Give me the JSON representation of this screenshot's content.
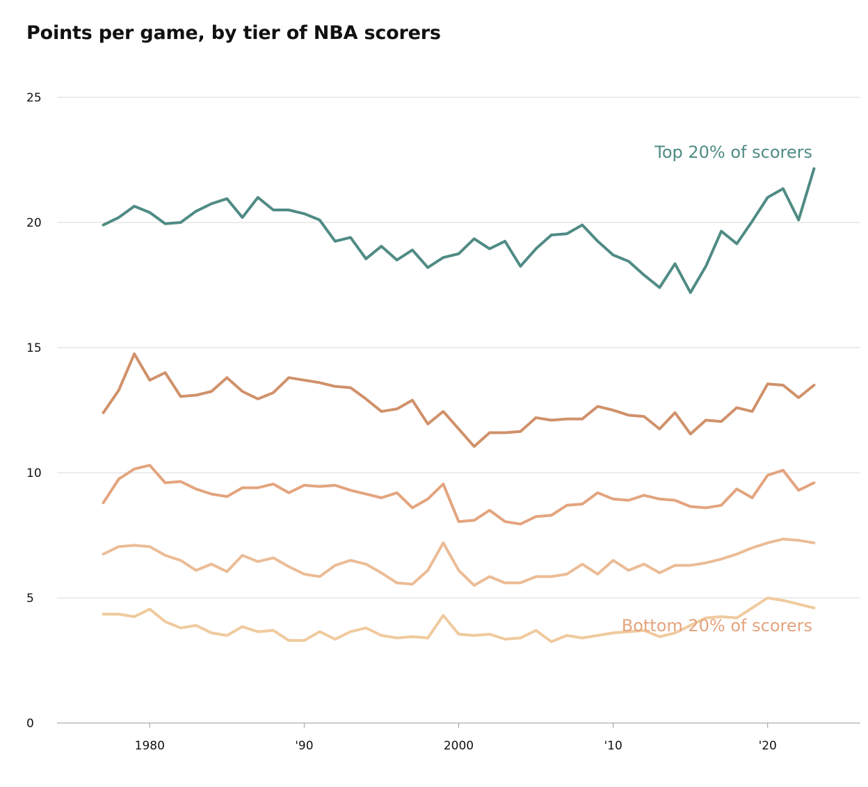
{
  "chart_data": {
    "type": "line",
    "title": "Points per game, by tier of NBA scorers",
    "xlabel": "",
    "ylabel": "",
    "xlim": [
      1974,
      2026
    ],
    "ylim": [
      0,
      25
    ],
    "y_ticks": [
      0,
      5,
      10,
      15,
      20,
      25
    ],
    "x_ticks": [
      {
        "value": 1980,
        "label": "1980"
      },
      {
        "value": 1990,
        "label": "'90"
      },
      {
        "value": 2000,
        "label": "2000"
      },
      {
        "value": 2010,
        "label": "'10"
      },
      {
        "value": 2020,
        "label": "'20"
      }
    ],
    "grid": true,
    "x": [
      1977,
      1978,
      1979,
      1980,
      1981,
      1982,
      1983,
      1984,
      1985,
      1986,
      1987,
      1988,
      1989,
      1990,
      1991,
      1992,
      1993,
      1994,
      1995,
      1996,
      1997,
      1998,
      1999,
      2000,
      2001,
      2002,
      2003,
      2004,
      2005,
      2006,
      2007,
      2008,
      2009,
      2010,
      2011,
      2012,
      2013,
      2014,
      2015,
      2016,
      2017,
      2018,
      2019,
      2020,
      2021,
      2022,
      2023
    ],
    "series": [
      {
        "color": "#4f8b84",
        "values": [
          19.9,
          20.2,
          20.65,
          20.4,
          19.95,
          20.0,
          20.45,
          20.75,
          20.95,
          20.2,
          21.0,
          20.5,
          20.5,
          20.35,
          20.1,
          19.25,
          19.4,
          18.55,
          19.05,
          18.5,
          18.9,
          18.2,
          18.6,
          18.75,
          19.35,
          18.95,
          19.25,
          18.25,
          18.95,
          19.5,
          19.55,
          19.9,
          19.25,
          18.7,
          18.45,
          17.9,
          17.4,
          18.35,
          17.2,
          18.25,
          19.65,
          19.15,
          20.05,
          21.0,
          21.35,
          20.1,
          22.15
        ]
      },
      {
        "color": "#d0916a",
        "values": [
          12.4,
          13.3,
          14.75,
          13.7,
          14.0,
          13.05,
          13.1,
          13.25,
          13.8,
          13.25,
          12.95,
          13.2,
          13.8,
          13.7,
          13.6,
          13.45,
          13.4,
          12.95,
          12.45,
          12.55,
          12.9,
          11.95,
          12.45,
          11.75,
          11.05,
          11.6,
          11.6,
          11.65,
          12.2,
          12.1,
          12.15,
          12.15,
          12.65,
          12.5,
          12.3,
          12.25,
          11.75,
          12.4,
          11.55,
          12.1,
          12.05,
          12.6,
          12.45,
          13.55,
          13.5,
          13.0,
          13.5
        ]
      },
      {
        "color": "#e3a47e",
        "values": [
          8.8,
          9.75,
          10.15,
          10.3,
          9.6,
          9.65,
          9.35,
          9.15,
          9.05,
          9.4,
          9.4,
          9.55,
          9.2,
          9.5,
          9.45,
          9.5,
          9.3,
          9.15,
          9.0,
          9.2,
          8.6,
          8.95,
          9.55,
          8.05,
          8.1,
          8.5,
          8.05,
          7.95,
          8.25,
          8.3,
          8.7,
          8.75,
          9.2,
          8.95,
          8.9,
          9.1,
          8.95,
          8.9,
          8.65,
          8.6,
          8.7,
          9.35,
          9.0,
          9.9,
          10.1,
          9.3,
          9.6
        ]
      },
      {
        "color": "#ebbc96",
        "values": [
          6.75,
          7.05,
          7.1,
          7.05,
          6.7,
          6.5,
          6.1,
          6.35,
          6.05,
          6.7,
          6.45,
          6.6,
          6.25,
          5.95,
          5.85,
          6.3,
          6.5,
          6.35,
          6.0,
          5.6,
          5.55,
          6.1,
          7.2,
          6.1,
          5.5,
          5.85,
          5.6,
          5.6,
          5.85,
          5.85,
          5.95,
          6.35,
          5.95,
          6.5,
          6.1,
          6.35,
          6.0,
          6.3,
          6.3,
          6.4,
          6.55,
          6.75,
          7.0,
          7.2,
          7.35,
          7.3,
          7.2
        ]
      },
      {
        "color": "#f0ca9e",
        "values": [
          4.35,
          4.35,
          4.25,
          4.55,
          4.05,
          3.8,
          3.9,
          3.6,
          3.5,
          3.85,
          3.65,
          3.7,
          3.3,
          3.3,
          3.65,
          3.35,
          3.65,
          3.8,
          3.5,
          3.4,
          3.45,
          3.4,
          4.3,
          3.55,
          3.5,
          3.55,
          3.35,
          3.4,
          3.7,
          3.25,
          3.5,
          3.4,
          3.5,
          3.6,
          3.65,
          3.7,
          3.45,
          3.6,
          3.9,
          4.2,
          4.25,
          4.2,
          4.6,
          5.0,
          4.9,
          4.75,
          4.6
        ]
      }
    ],
    "annotations": [
      {
        "text": "Top 20% of scorers",
        "color": "#4f8b84"
      },
      {
        "text": "Bottom 20% of scorers",
        "color": "#e3a47e"
      }
    ]
  }
}
